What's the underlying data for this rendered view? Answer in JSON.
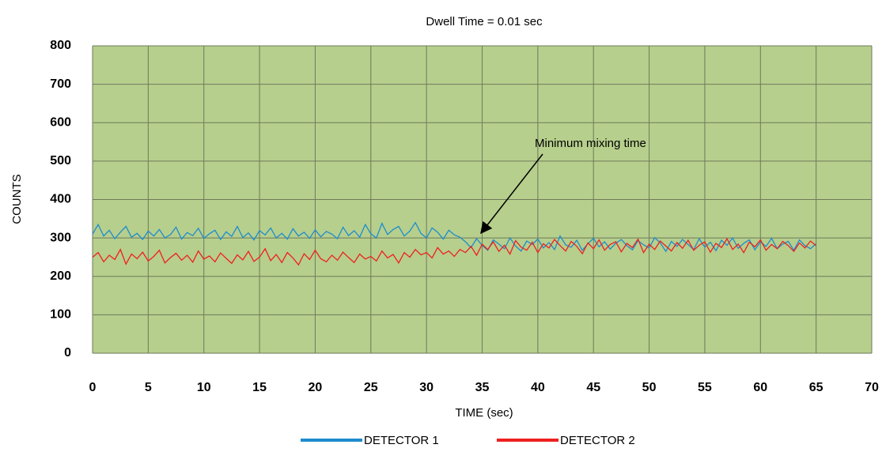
{
  "chart_data": {
    "type": "line",
    "title": "Dwell Time = 0.01 sec",
    "xlabel": "TIME (sec)",
    "ylabel": "COUNTS",
    "annotation": "Minimum mixing time",
    "xlim": [
      0,
      70
    ],
    "xticks": [
      0,
      5,
      10,
      15,
      20,
      25,
      30,
      35,
      40,
      45,
      50,
      55,
      60,
      65,
      70
    ],
    "ylim": [
      0,
      800
    ],
    "yticks": [
      0,
      100,
      200,
      300,
      400,
      500,
      600,
      700,
      800
    ],
    "grid": true,
    "background": "#b6cf8c",
    "legend": "bottom",
    "x": [
      0,
      0.5,
      1,
      1.5,
      2,
      2.5,
      3,
      3.5,
      4,
      4.5,
      5,
      5.5,
      6,
      6.5,
      7,
      7.5,
      8,
      8.5,
      9,
      9.5,
      10,
      10.5,
      11,
      11.5,
      12,
      12.5,
      13,
      13.5,
      14,
      14.5,
      15,
      15.5,
      16,
      16.5,
      17,
      17.5,
      18,
      18.5,
      19,
      19.5,
      20,
      20.5,
      21,
      21.5,
      22,
      22.5,
      23,
      23.5,
      24,
      24.5,
      25,
      25.5,
      26,
      26.5,
      27,
      27.5,
      28,
      28.5,
      29,
      29.5,
      30,
      30.5,
      31,
      31.5,
      32,
      32.5,
      33,
      33.5,
      34,
      34.5,
      35,
      35.5,
      36,
      36.5,
      37,
      37.5,
      38,
      38.5,
      39,
      39.5,
      40,
      40.5,
      41,
      41.5,
      42,
      42.5,
      43,
      43.5,
      44,
      44.5,
      45,
      45.5,
      46,
      46.5,
      47,
      47.5,
      48,
      48.5,
      49,
      49.5,
      50,
      50.5,
      51,
      51.5,
      52,
      52.5,
      53,
      53.5,
      54,
      54.5,
      55,
      55.5,
      56,
      56.5,
      57,
      57.5,
      58,
      58.5,
      59,
      59.5,
      60,
      60.5,
      61,
      61.5,
      62,
      62.5,
      63,
      63.5,
      64,
      64.5,
      65
    ],
    "series": [
      {
        "name": "DETECTOR 1",
        "color": "#1e8ccf",
        "values": [
          310,
          335,
          305,
          320,
          298,
          315,
          330,
          302,
          312,
          296,
          318,
          305,
          322,
          300,
          309,
          328,
          297,
          314,
          306,
          325,
          299,
          311,
          320,
          296,
          316,
          304,
          330,
          301,
          313,
          295,
          319,
          308,
          326,
          300,
          312,
          297,
          324,
          305,
          315,
          299,
          321,
          303,
          317,
          310,
          298,
          328,
          306,
          319,
          302,
          335,
          311,
          300,
          338,
          309,
          322,
          330,
          305,
          318,
          340,
          312,
          300,
          326,
          315,
          297,
          320,
          308,
          302,
          290,
          275,
          298,
          281,
          268,
          295,
          284,
          272,
          300,
          279,
          266,
          292,
          283,
          297,
          274,
          288,
          270,
          305,
          282,
          276,
          294,
          268,
          285,
          299,
          277,
          290,
          271,
          286,
          296,
          280,
          269,
          293,
          282,
          274,
          301,
          287,
          265,
          291,
          278,
          296,
          283,
          270,
          298,
          276,
          289,
          267,
          294,
          281,
          300,
          273,
          286,
          295,
          269,
          290,
          278,
          299,
          272,
          284,
          291,
          268,
          295,
          280,
          272,
          285
        ]
      },
      {
        "name": "DETECTOR 2",
        "color": "#ee2020",
        "values": [
          250,
          262,
          238,
          255,
          244,
          270,
          232,
          258,
          246,
          263,
          240,
          252,
          268,
          235,
          249,
          260,
          242,
          255,
          237,
          266,
          245,
          253,
          238,
          261,
          247,
          234,
          256,
          243,
          265,
          239,
          250,
          272,
          241,
          257,
          236,
          262,
          248,
          230,
          259,
          244,
          268,
          246,
          238,
          255,
          242,
          263,
          249,
          236,
          258,
          245,
          252,
          240,
          266,
          248,
          257,
          235,
          262,
          250,
          270,
          256,
          262,
          248,
          275,
          258,
          266,
          252,
          270,
          262,
          278,
          255,
          284,
          270,
          290,
          265,
          281,
          258,
          293,
          276,
          268,
          289,
          262,
          285,
          274,
          296,
          280,
          266,
          291,
          278,
          259,
          287,
          272,
          295,
          268,
          283,
          290,
          264,
          286,
          275,
          297,
          262,
          284,
          270,
          292,
          279,
          266,
          288,
          273,
          294,
          268,
          281,
          290,
          263,
          286,
          275,
          298,
          270,
          284,
          262,
          289,
          277,
          295,
          268,
          283,
          272,
          291,
          280,
          265,
          287,
          274,
          292,
          280
        ]
      }
    ]
  }
}
